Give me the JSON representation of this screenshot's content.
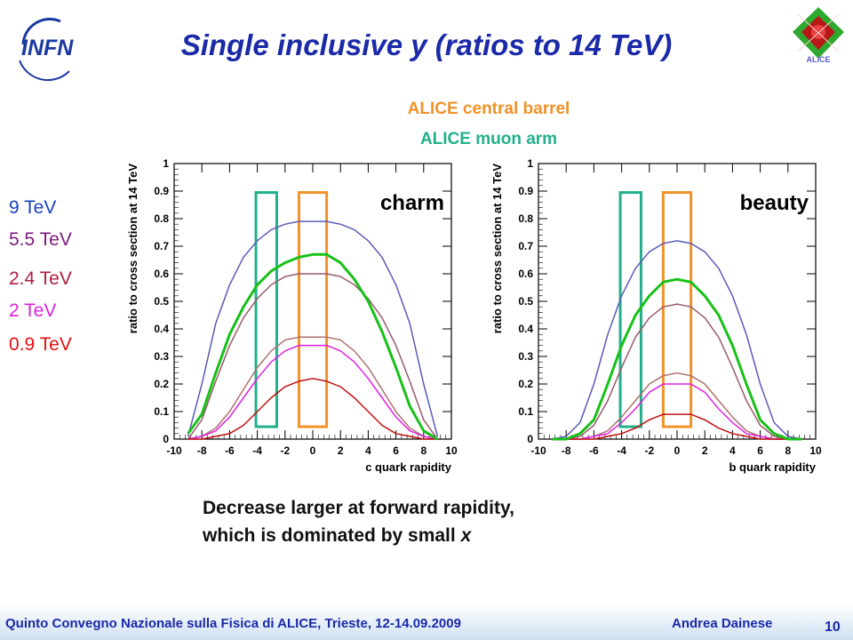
{
  "slide": {
    "title": "Single inclusive y (ratios to 14 TeV)",
    "statement_line1": "Decrease larger at forward rapidity,",
    "statement_line2_prefix": "which is dominated by small ",
    "statement_line2_var": "x",
    "page_number": "10"
  },
  "logos": {
    "infn_text": "INFN",
    "alice_text": "ALICE"
  },
  "acceptance": {
    "barrel_label": "ALICE central barrel",
    "barrel_color": "#f0922a",
    "muon_label": "ALICE muon arm",
    "muon_color": "#22b08c"
  },
  "energy_legend": [
    {
      "label": "9 TeV",
      "color": "#1a40c0"
    },
    {
      "label": "5.5 TeV",
      "color": "#7a1a7a"
    },
    {
      "label": "2.4 TeV",
      "color": "#b02040"
    },
    {
      "label": "2 TeV",
      "color": "#e020e0"
    },
    {
      "label": "0.9 TeV",
      "color": "#e01010"
    }
  ],
  "footer": {
    "left": "Quinto Convegno Nazionale sulla Fisica di ALICE, Trieste, 12-14.09.2009",
    "right": "Andrea Dainese"
  },
  "chart_data": [
    {
      "type": "line",
      "panel_label": "charm",
      "xlabel": "c quark rapidity",
      "ylabel": "ratio to cross section at 14 TeV",
      "xlim": [
        -10,
        10
      ],
      "ylim": [
        0,
        1
      ],
      "xticks": [
        "-10",
        "-8",
        "-6",
        "-4",
        "-2",
        "0",
        "2",
        "4",
        "6",
        "8",
        "10"
      ],
      "yticks": [
        "0",
        "0.1",
        "0.2",
        "0.3",
        "0.4",
        "0.5",
        "0.6",
        "0.7",
        "0.8",
        "0.9",
        "1"
      ],
      "x": [
        -9,
        -8,
        -7,
        -6,
        -5,
        -4,
        -3,
        -2,
        -1,
        0,
        1,
        2,
        3,
        4,
        5,
        6,
        7,
        8,
        9
      ],
      "series": [
        {
          "name": "9 TeV",
          "color": "#5a5ab8",
          "values": [
            0.01,
            0.2,
            0.42,
            0.56,
            0.66,
            0.72,
            0.76,
            0.78,
            0.79,
            0.79,
            0.79,
            0.78,
            0.76,
            0.72,
            0.66,
            0.56,
            0.42,
            0.2,
            0.01
          ]
        },
        {
          "name": "5.5 TeV",
          "color": "#9a5a6a",
          "values": [
            0.0,
            0.07,
            0.21,
            0.34,
            0.44,
            0.51,
            0.56,
            0.59,
            0.6,
            0.6,
            0.6,
            0.59,
            0.56,
            0.51,
            0.44,
            0.34,
            0.21,
            0.07,
            0.0
          ]
        },
        {
          "name": "2.4 TeV",
          "color": "#b07070",
          "values": [
            0.0,
            0.01,
            0.04,
            0.1,
            0.18,
            0.26,
            0.32,
            0.36,
            0.37,
            0.37,
            0.37,
            0.36,
            0.32,
            0.26,
            0.18,
            0.1,
            0.04,
            0.01,
            0.0
          ]
        },
        {
          "name": "2 TeV",
          "color": "#e020e0",
          "values": [
            0.0,
            0.01,
            0.03,
            0.08,
            0.15,
            0.22,
            0.28,
            0.32,
            0.34,
            0.34,
            0.34,
            0.32,
            0.28,
            0.22,
            0.15,
            0.08,
            0.03,
            0.01,
            0.0
          ]
        },
        {
          "name": "0.9 TeV",
          "color": "#c01010",
          "values": [
            0.0,
            0.0,
            0.01,
            0.02,
            0.05,
            0.1,
            0.15,
            0.19,
            0.21,
            0.22,
            0.21,
            0.19,
            0.15,
            0.1,
            0.05,
            0.02,
            0.01,
            0.0,
            0.0
          ]
        },
        {
          "name": "",
          "color": "#18c018",
          "values": [
            0.02,
            0.09,
            0.24,
            0.38,
            0.48,
            0.56,
            0.61,
            0.64,
            0.66,
            0.67,
            0.67,
            0.64,
            0.58,
            0.5,
            0.39,
            0.26,
            0.12,
            0.03,
            0.0
          ]
        }
      ]
    },
    {
      "type": "line",
      "panel_label": "beauty",
      "xlabel": "b quark rapidity",
      "ylabel": "ratio to cross section at 14 TeV",
      "xlim": [
        -10,
        10
      ],
      "ylim": [
        0,
        1
      ],
      "xticks": [
        "-10",
        "-8",
        "-6",
        "-4",
        "-2",
        "0",
        "2",
        "4",
        "6",
        "8",
        "10"
      ],
      "yticks": [
        "0",
        "0.1",
        "0.2",
        "0.3",
        "0.4",
        "0.5",
        "0.6",
        "0.7",
        "0.8",
        "0.9",
        "1"
      ],
      "x": [
        -9,
        -8,
        -7,
        -6,
        -5,
        -4,
        -3,
        -2,
        -1,
        0,
        1,
        2,
        3,
        4,
        5,
        6,
        7,
        8,
        9
      ],
      "series": [
        {
          "name": "9 TeV",
          "color": "#5a5ab8",
          "values": [
            0.0,
            0.01,
            0.06,
            0.2,
            0.38,
            0.52,
            0.62,
            0.68,
            0.71,
            0.72,
            0.71,
            0.68,
            0.62,
            0.52,
            0.38,
            0.2,
            0.06,
            0.01,
            0.0
          ]
        },
        {
          "name": "5.5 TeV",
          "color": "#9a5a6a",
          "values": [
            0.0,
            0.0,
            0.01,
            0.05,
            0.14,
            0.26,
            0.37,
            0.44,
            0.48,
            0.49,
            0.48,
            0.44,
            0.37,
            0.26,
            0.14,
            0.05,
            0.01,
            0.0,
            0.0
          ]
        },
        {
          "name": "2.4 TeV",
          "color": "#b07070",
          "values": [
            0.0,
            0.0,
            0.0,
            0.01,
            0.03,
            0.08,
            0.14,
            0.2,
            0.23,
            0.24,
            0.23,
            0.2,
            0.14,
            0.08,
            0.03,
            0.01,
            0.0,
            0.0,
            0.0
          ]
        },
        {
          "name": "2 TeV",
          "color": "#e020e0",
          "values": [
            0.0,
            0.0,
            0.0,
            0.01,
            0.02,
            0.06,
            0.11,
            0.17,
            0.2,
            0.2,
            0.2,
            0.17,
            0.11,
            0.06,
            0.02,
            0.01,
            0.0,
            0.0,
            0.0
          ]
        },
        {
          "name": "0.9 TeV",
          "color": "#c01010",
          "values": [
            0.0,
            0.0,
            0.0,
            0.0,
            0.01,
            0.02,
            0.04,
            0.07,
            0.09,
            0.09,
            0.09,
            0.07,
            0.04,
            0.02,
            0.01,
            0.0,
            0.0,
            0.0,
            0.0
          ]
        },
        {
          "name": "",
          "color": "#18c018",
          "values": [
            0.0,
            0.0,
            0.02,
            0.07,
            0.2,
            0.34,
            0.45,
            0.52,
            0.57,
            0.58,
            0.57,
            0.52,
            0.45,
            0.34,
            0.2,
            0.07,
            0.02,
            0.0,
            0.0
          ]
        }
      ]
    }
  ]
}
